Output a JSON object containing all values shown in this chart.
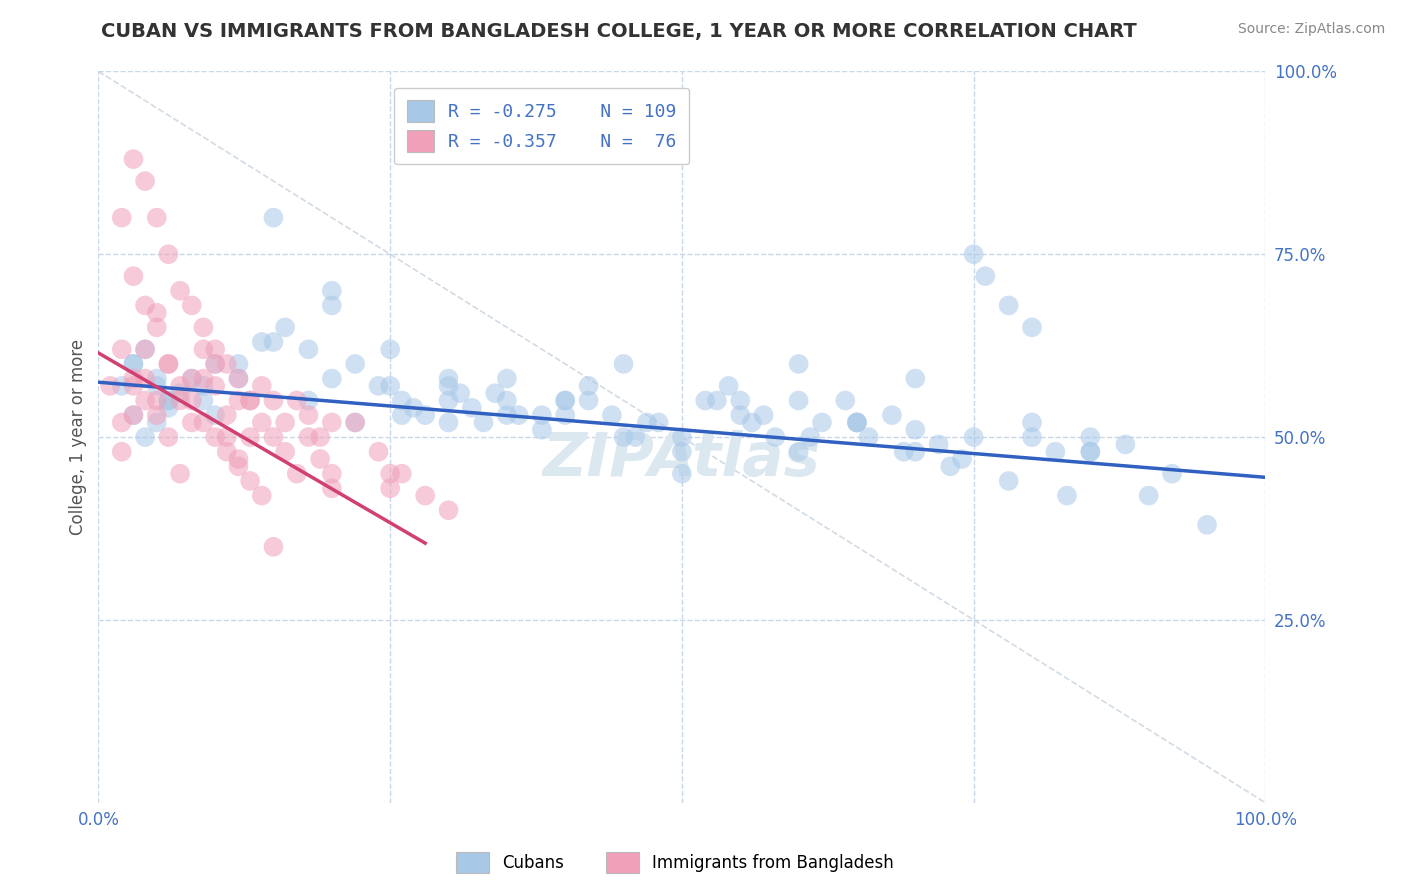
{
  "title": "CUBAN VS IMMIGRANTS FROM BANGLADESH COLLEGE, 1 YEAR OR MORE CORRELATION CHART",
  "source_text": "Source: ZipAtlas.com",
  "ylabel": "College, 1 year or more",
  "xlim": [
    0.0,
    1.0
  ],
  "ylim": [
    0.0,
    1.0
  ],
  "legend_r1": "R = -0.275",
  "legend_n1": "N = 109",
  "legend_r2": "R = -0.357",
  "legend_n2": "N =  76",
  "legend_label1": "Cubans",
  "legend_label2": "Immigrants from Bangladesh",
  "color_blue": "#a8c8e8",
  "color_pink": "#f0a0b8",
  "color_blue_line": "#3060c0",
  "color_pink_line": "#d04070",
  "color_watermark": "#dce8f0",
  "watermark_text": "ZIPAtlas",
  "blue_scatter_x": [
    0.02,
    0.03,
    0.04,
    0.05,
    0.06,
    0.03,
    0.04,
    0.05,
    0.06,
    0.07,
    0.08,
    0.09,
    0.1,
    0.12,
    0.14,
    0.16,
    0.18,
    0.2,
    0.22,
    0.24,
    0.26,
    0.28,
    0.3,
    0.32,
    0.34,
    0.36,
    0.38,
    0.4,
    0.42,
    0.44,
    0.46,
    0.48,
    0.5,
    0.52,
    0.54,
    0.56,
    0.58,
    0.6,
    0.62,
    0.64,
    0.66,
    0.68,
    0.7,
    0.72,
    0.74,
    0.76,
    0.78,
    0.8,
    0.82,
    0.85,
    0.88,
    0.92,
    0.15,
    0.2,
    0.25,
    0.3,
    0.35,
    0.4,
    0.45,
    0.5,
    0.55,
    0.6,
    0.65,
    0.7,
    0.75,
    0.8,
    0.85,
    0.05,
    0.1,
    0.15,
    0.2,
    0.25,
    0.3,
    0.35,
    0.4,
    0.45,
    0.5,
    0.55,
    0.6,
    0.65,
    0.7,
    0.75,
    0.8,
    0.85,
    0.9,
    0.95,
    0.03,
    0.06,
    0.09,
    0.12,
    0.3,
    0.35,
    0.38,
    0.42,
    0.47,
    0.53,
    0.57,
    0.61,
    0.65,
    0.69,
    0.73,
    0.78,
    0.83,
    0.18,
    0.22,
    0.26,
    0.27,
    0.31,
    0.33
  ],
  "blue_scatter_y": [
    0.57,
    0.6,
    0.62,
    0.58,
    0.55,
    0.53,
    0.5,
    0.52,
    0.54,
    0.56,
    0.58,
    0.55,
    0.53,
    0.6,
    0.63,
    0.65,
    0.62,
    0.68,
    0.6,
    0.57,
    0.55,
    0.53,
    0.52,
    0.54,
    0.56,
    0.53,
    0.51,
    0.55,
    0.57,
    0.53,
    0.5,
    0.52,
    0.48,
    0.55,
    0.57,
    0.52,
    0.5,
    0.48,
    0.52,
    0.55,
    0.5,
    0.53,
    0.51,
    0.49,
    0.47,
    0.72,
    0.68,
    0.65,
    0.48,
    0.5,
    0.49,
    0.45,
    0.8,
    0.58,
    0.62,
    0.55,
    0.58,
    0.53,
    0.5,
    0.45,
    0.55,
    0.6,
    0.52,
    0.48,
    0.75,
    0.5,
    0.48,
    0.57,
    0.6,
    0.63,
    0.7,
    0.57,
    0.58,
    0.53,
    0.55,
    0.6,
    0.5,
    0.53,
    0.55,
    0.52,
    0.58,
    0.5,
    0.52,
    0.48,
    0.42,
    0.38,
    0.6,
    0.55,
    0.57,
    0.58,
    0.57,
    0.55,
    0.53,
    0.55,
    0.52,
    0.55,
    0.53,
    0.5,
    0.52,
    0.48,
    0.46,
    0.44,
    0.42,
    0.55,
    0.52,
    0.53,
    0.54,
    0.56,
    0.52
  ],
  "pink_scatter_x": [
    0.01,
    0.02,
    0.02,
    0.03,
    0.03,
    0.03,
    0.04,
    0.04,
    0.04,
    0.05,
    0.05,
    0.05,
    0.06,
    0.06,
    0.07,
    0.07,
    0.08,
    0.08,
    0.09,
    0.09,
    0.1,
    0.1,
    0.11,
    0.11,
    0.12,
    0.12,
    0.13,
    0.13,
    0.14,
    0.15,
    0.16,
    0.17,
    0.18,
    0.19,
    0.2,
    0.22,
    0.24,
    0.26,
    0.28,
    0.3,
    0.02,
    0.03,
    0.04,
    0.05,
    0.06,
    0.07,
    0.08,
    0.09,
    0.1,
    0.11,
    0.12,
    0.13,
    0.14,
    0.15,
    0.16,
    0.17,
    0.18,
    0.19,
    0.2,
    0.25,
    0.02,
    0.03,
    0.04,
    0.05,
    0.06,
    0.07,
    0.08,
    0.09,
    0.1,
    0.11,
    0.12,
    0.13,
    0.14,
    0.15,
    0.2,
    0.25
  ],
  "pink_scatter_y": [
    0.57,
    0.62,
    0.8,
    0.58,
    0.72,
    0.88,
    0.55,
    0.68,
    0.85,
    0.53,
    0.65,
    0.8,
    0.6,
    0.75,
    0.57,
    0.7,
    0.55,
    0.68,
    0.52,
    0.65,
    0.5,
    0.62,
    0.48,
    0.6,
    0.46,
    0.58,
    0.44,
    0.55,
    0.52,
    0.5,
    0.48,
    0.45,
    0.5,
    0.47,
    0.43,
    0.52,
    0.48,
    0.45,
    0.42,
    0.4,
    0.52,
    0.57,
    0.62,
    0.67,
    0.6,
    0.55,
    0.58,
    0.62,
    0.57,
    0.53,
    0.55,
    0.5,
    0.57,
    0.55,
    0.52,
    0.55,
    0.53,
    0.5,
    0.52,
    0.45,
    0.48,
    0.53,
    0.58,
    0.55,
    0.5,
    0.45,
    0.52,
    0.58,
    0.6,
    0.5,
    0.47,
    0.55,
    0.42,
    0.35,
    0.45,
    0.43
  ],
  "blue_line_x0": 0.0,
  "blue_line_y0": 0.575,
  "blue_line_x1": 1.0,
  "blue_line_y1": 0.445,
  "pink_line_x0": 0.0,
  "pink_line_y0": 0.615,
  "pink_line_x1": 0.28,
  "pink_line_y1": 0.355,
  "gray_line_x0": 0.0,
  "gray_line_y0": 1.0,
  "gray_line_x1": 1.0,
  "gray_line_y1": 0.0,
  "background_color": "#ffffff",
  "grid_color": "#c8d8e8",
  "scatter_alpha": 0.55,
  "scatter_size": 200
}
